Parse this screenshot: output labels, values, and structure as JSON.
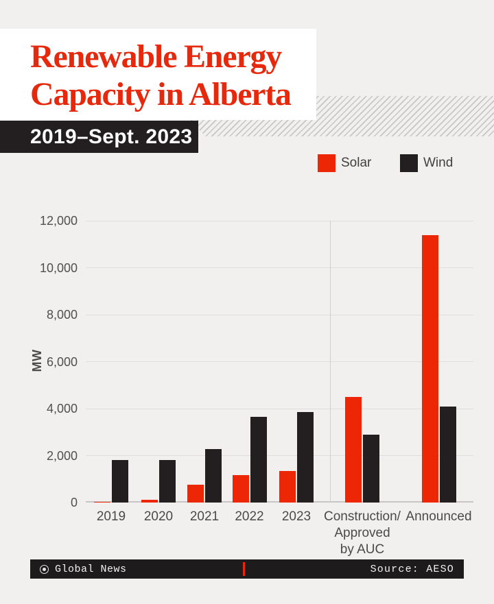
{
  "header": {
    "title_line1": "Renewable Energy",
    "title_line2": "Capacity in Alberta",
    "subtitle": "2019–Sept. 2023",
    "title_color": "#e6290d"
  },
  "legend": [
    {
      "label": "Solar",
      "color": "#ed2605"
    },
    {
      "label": "Wind",
      "color": "#231f20"
    }
  ],
  "chart_data": {
    "type": "bar",
    "title": "Renewable Energy Capacity in Alberta",
    "subtitle": "2019–Sept. 2023",
    "ylabel": "MW",
    "xlabel": "",
    "ylim": [
      0,
      12000
    ],
    "yticks": [
      0,
      2000,
      4000,
      6000,
      8000,
      10000,
      12000
    ],
    "grid": "horizontal",
    "legend_position": "top-right",
    "categories": [
      "2019",
      "2020",
      "2021",
      "2022",
      "2023",
      "Construction/ Approved by AUC",
      "Announced"
    ],
    "category_lines": [
      [
        "2019"
      ],
      [
        "2020"
      ],
      [
        "2021"
      ],
      [
        "2022"
      ],
      [
        "2023"
      ],
      [
        "Construction/",
        "Approved",
        "by AUC"
      ],
      [
        "Announced"
      ]
    ],
    "series": [
      {
        "name": "Solar",
        "color": "#ed2605",
        "values": [
          40,
          130,
          760,
          1170,
          1340,
          4500,
          11400
        ]
      },
      {
        "name": "Wind",
        "color": "#231f20",
        "values": [
          1800,
          1800,
          2270,
          3650,
          3850,
          2900,
          4100
        ]
      }
    ],
    "separator_after_category_index": 4,
    "background_color": "#f1f0ee"
  },
  "footer": {
    "brand": "Global News",
    "source": "Source: AESO"
  }
}
